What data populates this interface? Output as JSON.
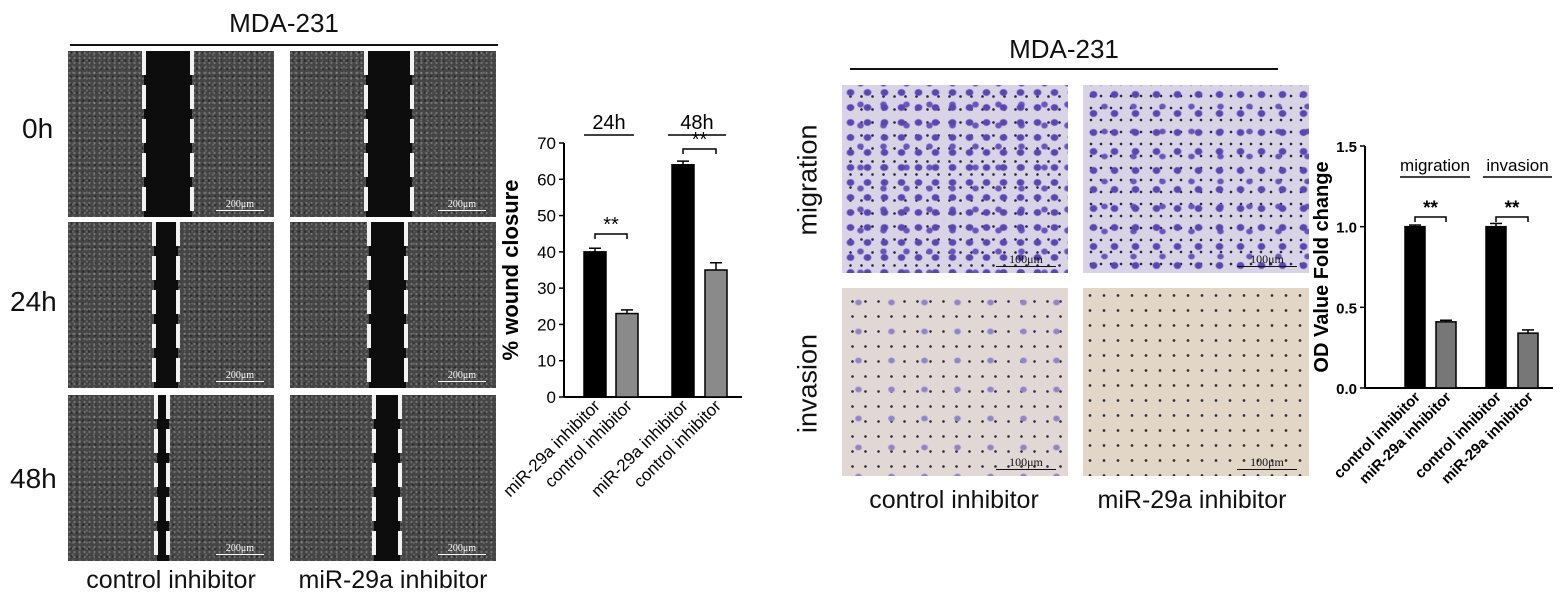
{
  "wound": {
    "header": "MDA-231",
    "rows": [
      "0h",
      "24h",
      "48h"
    ],
    "columns": [
      "control inhibitor",
      "miR-29a inhibitor"
    ],
    "scale_bar": "200μm"
  },
  "transwell": {
    "header": "MDA-231",
    "rows": [
      "migration",
      "invasion"
    ],
    "columns": [
      "control inhibitor",
      "miR-29a inhibitor"
    ],
    "scale_bar": "100μm"
  },
  "chart_data": [
    {
      "type": "bar",
      "title": "",
      "ylabel": "% wound closure",
      "ylim": [
        0,
        70
      ],
      "yticks": [
        0,
        10,
        20,
        30,
        40,
        50,
        60,
        70
      ],
      "groups": [
        "24h",
        "48h"
      ],
      "categories": [
        "miR-29a inhibitor",
        "control inhibitor",
        "miR-29a inhibitor",
        "control inhibitor"
      ],
      "values": [
        40,
        23,
        64,
        35
      ],
      "errors": [
        1,
        1,
        1,
        2
      ],
      "bar_colors": [
        "#000000",
        "#8a8a8a",
        "#000000",
        "#8a8a8a"
      ],
      "significance": [
        "**",
        "**"
      ]
    },
    {
      "type": "bar",
      "title": "",
      "ylabel": "OD Value Fold change",
      "ylim": [
        0,
        1.5
      ],
      "yticks": [
        "0.0",
        "0.5",
        "1.0",
        "1.5"
      ],
      "groups": [
        "migration",
        "invasion"
      ],
      "categories": [
        "control inhibitor",
        "miR-29a inhibitor",
        "control inhibitor",
        "miR-29a inhibitor"
      ],
      "values": [
        1.0,
        0.41,
        1.0,
        0.34
      ],
      "errors": [
        0.01,
        0.01,
        0.02,
        0.02
      ],
      "bar_colors": [
        "#000000",
        "#777777",
        "#000000",
        "#777777"
      ],
      "significance": [
        "**",
        "**"
      ]
    }
  ]
}
